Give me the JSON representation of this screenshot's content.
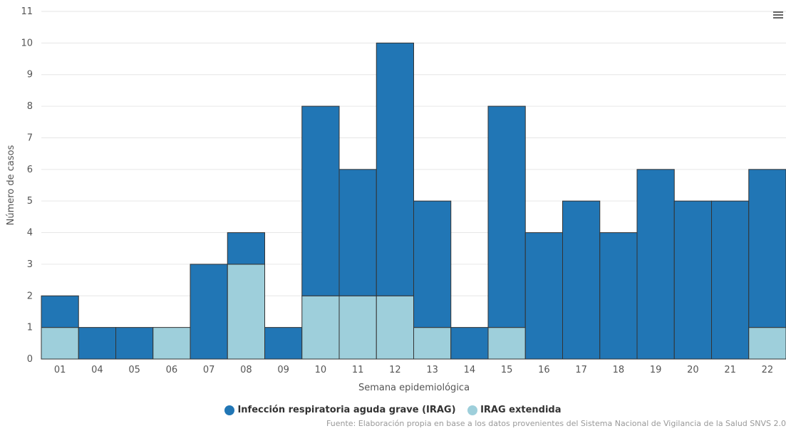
{
  "chart_data": {
    "type": "bar",
    "stacked": true,
    "categories": [
      "01",
      "04",
      "05",
      "06",
      "07",
      "08",
      "09",
      "10",
      "11",
      "12",
      "13",
      "14",
      "15",
      "16",
      "17",
      "18",
      "19",
      "20",
      "21",
      "22"
    ],
    "series": [
      {
        "name": "IRAG extendida",
        "color": "#9ecfdb",
        "values": [
          1,
          0,
          0,
          1,
          0,
          3,
          0,
          2,
          2,
          2,
          1,
          0,
          1,
          0,
          0,
          0,
          0,
          0,
          0,
          1
        ]
      },
      {
        "name": "Infección respiratoria aguda grave (IRAG)",
        "color": "#2176b5",
        "values": [
          1,
          1,
          1,
          0,
          3,
          1,
          1,
          6,
          4,
          8,
          4,
          1,
          7,
          4,
          5,
          4,
          6,
          5,
          5,
          5
        ]
      }
    ],
    "xlabel": "Semana epidemiológica",
    "ylabel": "Número de casos",
    "ylim": [
      0,
      11
    ],
    "yticks": [
      0,
      1,
      2,
      3,
      4,
      5,
      6,
      7,
      8,
      9,
      10,
      11
    ],
    "grid": true,
    "legend_position": "bottom-center",
    "legend_order": [
      "Infección respiratoria aguda grave (IRAG)",
      "IRAG extendida"
    ]
  },
  "source_note": "Fuente: Elaboración propia en base a los datos provenientes del Sistema Nacional de Vigilancia de la Salud SNVS 2.0",
  "menu": {
    "icon": "hamburger-menu-icon"
  }
}
